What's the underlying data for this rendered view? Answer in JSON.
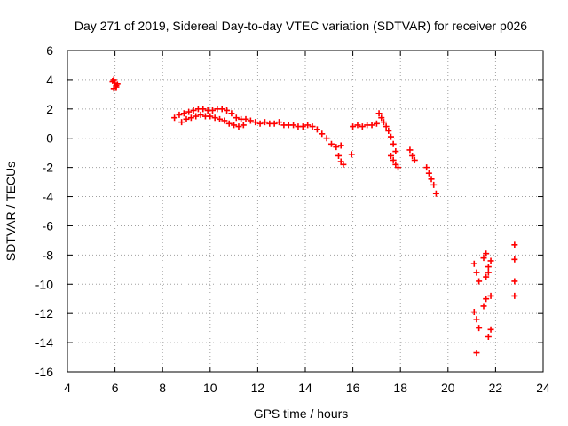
{
  "colors": {
    "series": "#ff0000",
    "grid": "#a0a0a0",
    "axis": "#000000",
    "background": "#ffffff"
  },
  "chart_data": {
    "type": "scatter",
    "title": "Day 271 of 2019, Sidereal Day-to-day VTEC variation (SDTVAR) for receiver p026",
    "xlabel": "GPS time / hours",
    "ylabel": "SDTVAR / TECUs",
    "xlim": [
      4,
      24
    ],
    "ylim": [
      -16,
      6
    ],
    "xticks": [
      4,
      6,
      8,
      10,
      12,
      14,
      16,
      18,
      20,
      22,
      24
    ],
    "yticks": [
      6,
      4,
      2,
      0,
      -2,
      -4,
      -6,
      -8,
      -10,
      -12,
      -14,
      -16
    ],
    "grid": true,
    "marker": "+",
    "series": [
      {
        "name": "p026",
        "x": [
          5.9,
          5.95,
          6.0,
          6.05,
          6.1,
          5.95,
          6.05,
          8.5,
          8.7,
          8.9,
          9.1,
          9.3,
          9.5,
          9.7,
          9.9,
          10.1,
          10.3,
          10.5,
          10.7,
          10.9,
          11.1,
          11.3,
          11.5,
          11.7,
          11.9,
          12.1,
          12.3,
          12.5,
          12.7,
          12.9,
          13.1,
          13.3,
          13.5,
          13.7,
          13.9,
          14.1,
          14.3,
          8.8,
          9.0,
          9.2,
          9.4,
          9.6,
          9.8,
          10.0,
          10.2,
          10.4,
          10.6,
          10.8,
          11.0,
          11.2,
          11.4,
          14.5,
          14.7,
          14.9,
          15.1,
          15.3,
          15.5,
          15.4,
          15.5,
          15.6,
          15.95,
          16.0,
          16.2,
          16.4,
          16.6,
          16.8,
          17.0,
          17.1,
          17.2,
          17.3,
          17.4,
          17.5,
          17.6,
          17.7,
          17.8,
          17.6,
          17.7,
          17.8,
          17.9,
          18.4,
          18.5,
          18.6,
          19.1,
          19.2,
          19.3,
          19.4,
          19.5,
          21.1,
          21.2,
          21.3,
          21.5,
          21.6,
          21.7,
          21.8,
          21.1,
          21.2,
          21.3,
          21.5,
          21.6,
          21.7,
          21.8,
          21.6,
          21.7,
          21.8,
          21.2,
          22.8,
          22.8,
          22.8,
          22.8
        ],
        "y": [
          3.9,
          4.0,
          3.8,
          3.6,
          3.7,
          3.4,
          3.5,
          1.4,
          1.6,
          1.7,
          1.8,
          1.9,
          2.0,
          2.0,
          1.9,
          1.9,
          2.0,
          2.0,
          1.9,
          1.7,
          1.4,
          1.3,
          1.3,
          1.2,
          1.1,
          1.0,
          1.1,
          1.0,
          1.0,
          1.1,
          0.9,
          0.9,
          0.9,
          0.8,
          0.8,
          0.9,
          0.8,
          1.1,
          1.3,
          1.4,
          1.5,
          1.6,
          1.5,
          1.5,
          1.4,
          1.3,
          1.2,
          1.0,
          0.9,
          0.8,
          0.9,
          0.6,
          0.3,
          0.0,
          -0.4,
          -0.6,
          -0.5,
          -1.2,
          -1.6,
          -1.8,
          -1.1,
          0.8,
          0.9,
          0.8,
          0.9,
          0.9,
          1.0,
          1.7,
          1.4,
          1.1,
          0.8,
          0.5,
          0.1,
          -0.4,
          -0.9,
          -1.2,
          -1.5,
          -1.8,
          -2.0,
          -0.8,
          -1.2,
          -1.5,
          -2.0,
          -2.4,
          -2.8,
          -3.2,
          -3.8,
          -8.6,
          -9.2,
          -9.8,
          -8.2,
          -7.9,
          -8.8,
          -8.4,
          -11.9,
          -12.4,
          -13.0,
          -11.5,
          -11.0,
          -13.6,
          -13.1,
          -9.5,
          -9.2,
          -10.8,
          -14.7,
          -7.3,
          -8.3,
          -9.8,
          -10.8
        ]
      }
    ]
  }
}
